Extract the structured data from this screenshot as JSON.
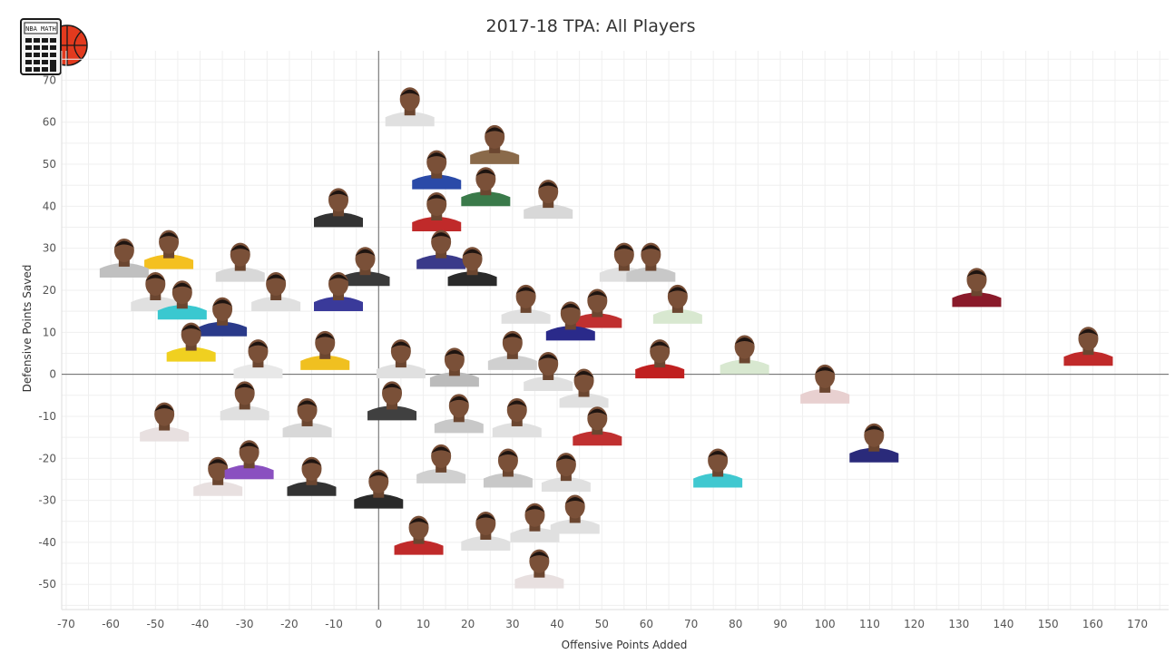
{
  "chart_data": {
    "type": "scatter",
    "title": "2017-18 TPA: All Players",
    "xlabel": "Offensive Points Added",
    "ylabel": "Defensive Points Saved",
    "xlim": [
      -71,
      177
    ],
    "ylim": [
      -56,
      77
    ],
    "x_ticks": [
      -70,
      -60,
      -50,
      -40,
      -30,
      -20,
      -10,
      0,
      10,
      20,
      30,
      40,
      50,
      60,
      70,
      80,
      90,
      100,
      110,
      120,
      130,
      140,
      150,
      160,
      170
    ],
    "y_ticks": [
      -50,
      -40,
      -30,
      -20,
      -10,
      0,
      10,
      20,
      30,
      40,
      50,
      60,
      70
    ],
    "grid": true,
    "marker": "player-headshot",
    "points": [
      {
        "x": 7,
        "y": 64,
        "jersey": "#e0e0e0"
      },
      {
        "x": 26,
        "y": 55,
        "jersey": "#8a6a4a"
      },
      {
        "x": 13,
        "y": 49,
        "jersey": "#2a4aa8"
      },
      {
        "x": 24,
        "y": 45,
        "jersey": "#3a7a4a"
      },
      {
        "x": 38,
        "y": 42,
        "jersey": "#d8d8d8"
      },
      {
        "x": -9,
        "y": 40,
        "jersey": "#333333"
      },
      {
        "x": 13,
        "y": 39,
        "jersey": "#c02a2a"
      },
      {
        "x": -47,
        "y": 30,
        "jersey": "#f4c020"
      },
      {
        "x": -57,
        "y": 28,
        "jersey": "#c0c0c0"
      },
      {
        "x": -31,
        "y": 27,
        "jersey": "#d8d8d8"
      },
      {
        "x": 55,
        "y": 27,
        "jersey": "#e0e0e0"
      },
      {
        "x": 61,
        "y": 27,
        "jersey": "#c8c8c8"
      },
      {
        "x": 14,
        "y": 30,
        "jersey": "#3a3a8a"
      },
      {
        "x": -3,
        "y": 26,
        "jersey": "#3a3a3a"
      },
      {
        "x": 21,
        "y": 26,
        "jersey": "#2a2a2a"
      },
      {
        "x": 134,
        "y": 21,
        "jersey": "#8a1a2a"
      },
      {
        "x": 67,
        "y": 17,
        "jersey": "#d8e8d0"
      },
      {
        "x": 49,
        "y": 16,
        "jersey": "#c03030"
      },
      {
        "x": -50,
        "y": 20,
        "jersey": "#e0e0e0"
      },
      {
        "x": -44,
        "y": 18,
        "jersey": "#3ac8d0"
      },
      {
        "x": -35,
        "y": 14,
        "jersey": "#2a3a8a"
      },
      {
        "x": -23,
        "y": 20,
        "jersey": "#e0e0e0"
      },
      {
        "x": -9,
        "y": 20,
        "jersey": "#3a3a9a"
      },
      {
        "x": 33,
        "y": 17,
        "jersey": "#e0e0e0"
      },
      {
        "x": 43,
        "y": 13,
        "jersey": "#2a2a8a"
      },
      {
        "x": 63,
        "y": 4,
        "jersey": "#c02020"
      },
      {
        "x": 82,
        "y": 5,
        "jersey": "#d8e8d0"
      },
      {
        "x": 100,
        "y": -2,
        "jersey": "#e8d0d0"
      },
      {
        "x": 159,
        "y": 7,
        "jersey": "#c02a2a"
      },
      {
        "x": -42,
        "y": 8,
        "jersey": "#f0d020"
      },
      {
        "x": -27,
        "y": 4,
        "jersey": "#e8e8e8"
      },
      {
        "x": -12,
        "y": 6,
        "jersey": "#f0c020"
      },
      {
        "x": 5,
        "y": 4,
        "jersey": "#e0e0e0"
      },
      {
        "x": 17,
        "y": 2,
        "jersey": "#bbbbbb"
      },
      {
        "x": 30,
        "y": 6,
        "jersey": "#d0d0d0"
      },
      {
        "x": 38,
        "y": 1,
        "jersey": "#e0e0e0"
      },
      {
        "x": 46,
        "y": -3,
        "jersey": "#e0e0e0"
      },
      {
        "x": -48,
        "y": -11,
        "jersey": "#e8e0e0"
      },
      {
        "x": -30,
        "y": -6,
        "jersey": "#e0e0e0"
      },
      {
        "x": -16,
        "y": -10,
        "jersey": "#d8d8d8"
      },
      {
        "x": 3,
        "y": -6,
        "jersey": "#404040"
      },
      {
        "x": 18,
        "y": -9,
        "jersey": "#c8c8c8"
      },
      {
        "x": 31,
        "y": -10,
        "jersey": "#e0e0e0"
      },
      {
        "x": 49,
        "y": -12,
        "jersey": "#c03030"
      },
      {
        "x": 111,
        "y": -16,
        "jersey": "#2a2a7a"
      },
      {
        "x": -36,
        "y": -24,
        "jersey": "#e8e0e0"
      },
      {
        "x": -29,
        "y": -20,
        "jersey": "#8a50c0"
      },
      {
        "x": -15,
        "y": -24,
        "jersey": "#333333"
      },
      {
        "x": 0,
        "y": -27,
        "jersey": "#2a2a2a"
      },
      {
        "x": 14,
        "y": -21,
        "jersey": "#d0d0d0"
      },
      {
        "x": 29,
        "y": -22,
        "jersey": "#c8c8c8"
      },
      {
        "x": 42,
        "y": -23,
        "jersey": "#e0e0e0"
      },
      {
        "x": 76,
        "y": -22,
        "jersey": "#40c8d0"
      },
      {
        "x": 9,
        "y": -38,
        "jersey": "#c02a2a"
      },
      {
        "x": 24,
        "y": -37,
        "jersey": "#e0e0e0"
      },
      {
        "x": 35,
        "y": -35,
        "jersey": "#e0e0e0"
      },
      {
        "x": 44,
        "y": -33,
        "jersey": "#e0e0e0"
      },
      {
        "x": 36,
        "y": -46,
        "jersey": "#e8e0e0"
      }
    ]
  }
}
